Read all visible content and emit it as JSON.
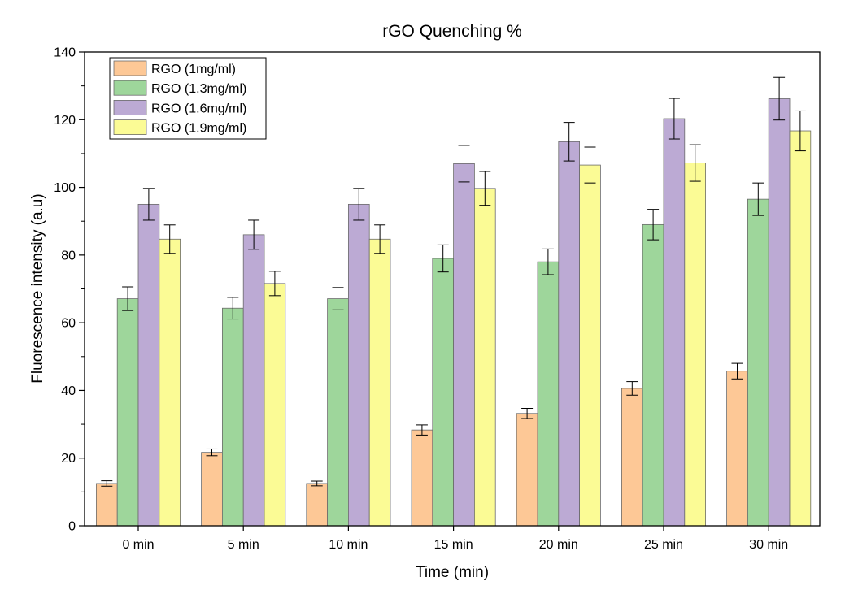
{
  "chart_data": {
    "type": "bar",
    "title": "rGO Quenching %",
    "xlabel": "Time (min)",
    "ylabel": "Fluorescence intensity (a.u)",
    "categories": [
      "0 min",
      "5 min",
      "10 min",
      "15 min",
      "20 min",
      "25 min",
      "30 min"
    ],
    "ylim": [
      0,
      140
    ],
    "yticks": [
      0,
      20,
      40,
      60,
      80,
      100,
      120,
      140
    ],
    "grid": false,
    "legend_position": "top-left",
    "series": [
      {
        "name": "RGO (1mg/ml)",
        "color": "#fdc896",
        "values": [
          12.5,
          21.7,
          12.5,
          28.3,
          33.2,
          40.6,
          45.7
        ],
        "errors": [
          0.8,
          1.0,
          0.7,
          1.5,
          1.5,
          2.0,
          2.3
        ]
      },
      {
        "name": "RGO (1.3mg/ml)",
        "color": "#9ed69b",
        "values": [
          67.1,
          64.3,
          67.1,
          79.0,
          78.0,
          89.0,
          96.5
        ],
        "errors": [
          3.5,
          3.2,
          3.3,
          4.0,
          3.8,
          4.5,
          4.8
        ]
      },
      {
        "name": "RGO (1.6mg/ml)",
        "color": "#bcaad4",
        "values": [
          95.0,
          86.0,
          95.0,
          107.0,
          113.5,
          120.3,
          126.2
        ],
        "errors": [
          4.7,
          4.3,
          4.7,
          5.4,
          5.7,
          6.0,
          6.3
        ]
      },
      {
        "name": "RGO (1.9mg/ml)",
        "color": "#fbfb95",
        "values": [
          84.7,
          71.6,
          84.7,
          99.7,
          106.6,
          107.2,
          116.7
        ],
        "errors": [
          4.2,
          3.6,
          4.2,
          5.0,
          5.3,
          5.4,
          5.9
        ]
      }
    ]
  }
}
